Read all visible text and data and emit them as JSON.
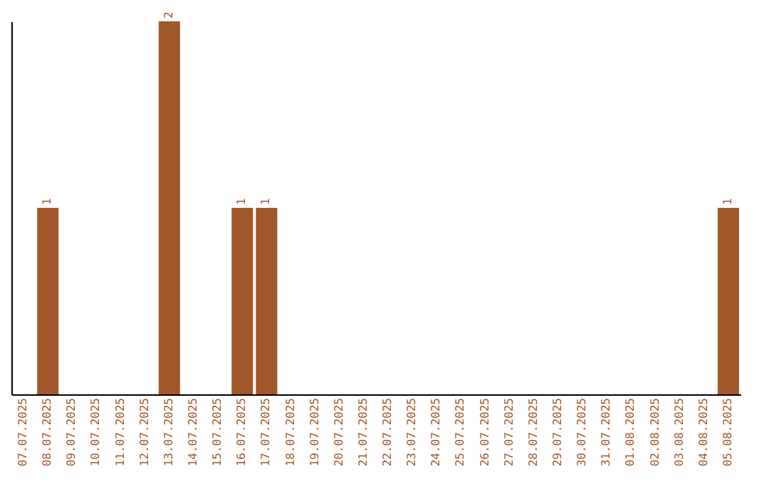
{
  "chart_data": {
    "type": "bar",
    "categories": [
      "07.07.2025",
      "08.07.2025",
      "09.07.2025",
      "10.07.2025",
      "11.07.2025",
      "12.07.2025",
      "13.07.2025",
      "14.07.2025",
      "15.07.2025",
      "16.07.2025",
      "17.07.2025",
      "18.07.2025",
      "19.07.2025",
      "20.07.2025",
      "21.07.2025",
      "22.07.2025",
      "23.07.2025",
      "24.07.2025",
      "25.07.2025",
      "26.07.2025",
      "27.07.2025",
      "28.07.2025",
      "29.07.2025",
      "30.07.2025",
      "31.07.2025",
      "01.08.2025",
      "02.08.2025",
      "03.08.2025",
      "04.08.2025",
      "05.08.2025"
    ],
    "values": [
      0,
      1,
      0,
      0,
      0,
      0,
      2,
      0,
      0,
      1,
      1,
      0,
      0,
      0,
      0,
      0,
      0,
      0,
      0,
      0,
      0,
      0,
      0,
      0,
      0,
      0,
      0,
      0,
      0,
      1
    ],
    "color": "#a0572a",
    "ylim": [
      0,
      2
    ],
    "tick_labels": "x",
    "value_labels": [
      null,
      "1",
      null,
      null,
      null,
      null,
      "2",
      null,
      null,
      "1",
      "1",
      null,
      null,
      null,
      null,
      null,
      null,
      null,
      null,
      null,
      null,
      null,
      null,
      null,
      null,
      null,
      null,
      null,
      null,
      "1"
    ]
  }
}
